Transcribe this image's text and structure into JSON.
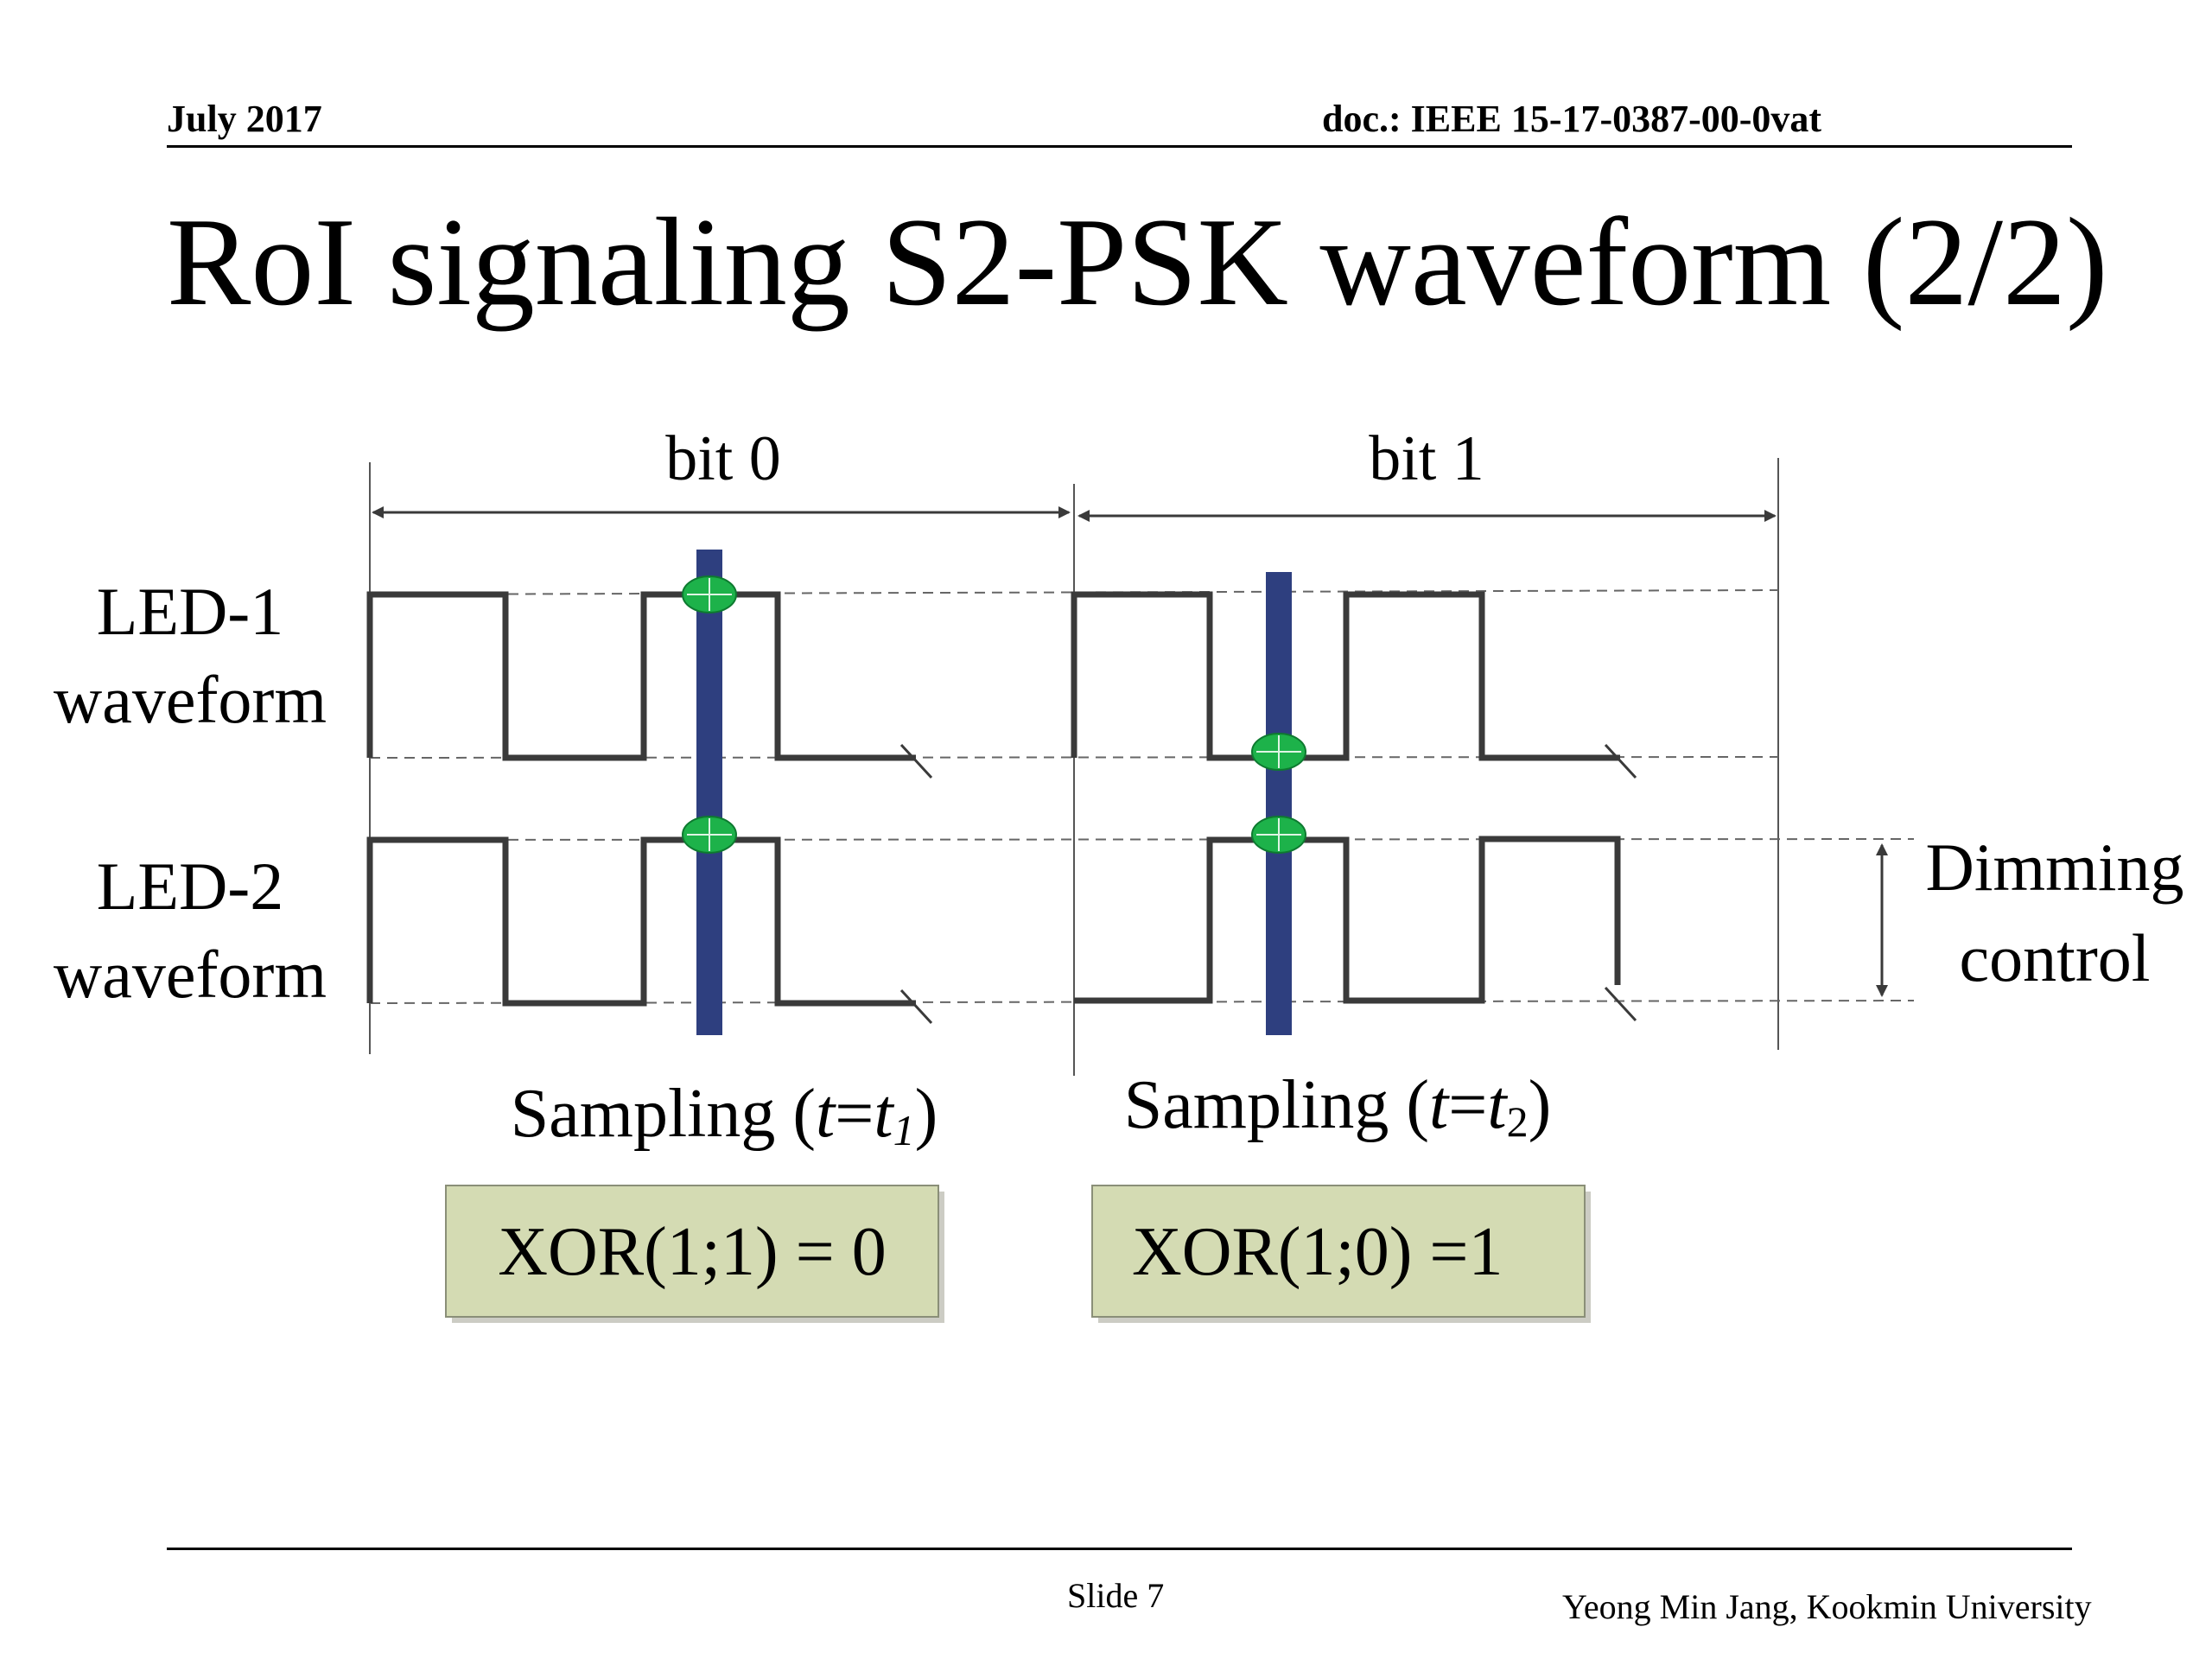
{
  "header": {
    "date": "July 2017",
    "doc": "doc.: IEEE 15-17-0387-00-0vat"
  },
  "title": "RoI signaling S2-PSK waveform (2/2)",
  "diagram": {
    "bit0_label": "bit 0",
    "bit1_label": "bit 1",
    "led1_label": [
      "LED-1",
      "waveform"
    ],
    "led2_label": [
      "LED-2",
      "waveform"
    ],
    "dimming_label": [
      "Dimming",
      "control"
    ],
    "sampling1": {
      "prefix": "Sampling (",
      "t": "t",
      "eq": "=",
      "sub": "1",
      "suffix": ")"
    },
    "sampling2": {
      "prefix": "Sampling (",
      "t": "t",
      "eq": "=",
      "sub": "2",
      "suffix": ")"
    },
    "xor1": "XOR(1;1) = 0",
    "xor2": "XOR(1;0) =1",
    "colors": {
      "sample_bar": "#2e3f7f",
      "sample_point": "#1db24a",
      "result_box": "#d4dbb3",
      "waveform": "#3a3a3a"
    }
  },
  "footer": {
    "slide": "Slide 7",
    "author": "Yeong Min Jang, Kookmin University"
  }
}
